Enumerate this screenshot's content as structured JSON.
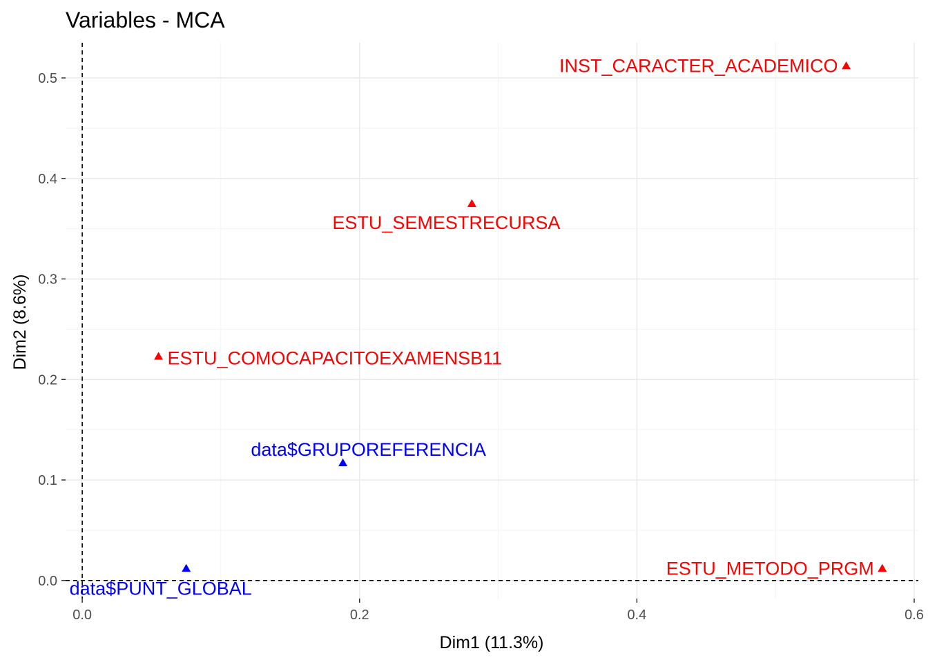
{
  "chart_data": {
    "type": "scatter",
    "title": "Variables - MCA",
    "xlabel": "Dim1 (11.3%)",
    "ylabel": "Dim2 (8.6%)",
    "xlim": [
      -0.012,
      0.603
    ],
    "ylim": [
      -0.018,
      0.535
    ],
    "x_ticks": [
      0.0,
      0.2,
      0.4,
      0.6
    ],
    "x_tick_labels": [
      "0.0",
      "0.2",
      "0.4",
      "0.6"
    ],
    "y_ticks": [
      0.0,
      0.1,
      0.2,
      0.3,
      0.4,
      0.5
    ],
    "y_tick_labels": [
      "0.0",
      "0.1",
      "0.2",
      "0.3",
      "0.4",
      "0.5"
    ],
    "grid": true,
    "reference_lines": {
      "x": 0,
      "y": 0,
      "style": "dashed"
    },
    "colors": {
      "active": "#ff0000",
      "supplementary": "#0000ff"
    },
    "points": [
      {
        "label": "INST_CARACTER_ACADEMICO",
        "x": 0.551,
        "y": 0.512,
        "group": "active",
        "label_pos": "left"
      },
      {
        "label": "ESTU_SEMESTRECURSA",
        "x": 0.281,
        "y": 0.375,
        "group": "active",
        "label_pos": "below"
      },
      {
        "label": "ESTU_COMOCAPACITOEXAMENSB11",
        "x": 0.055,
        "y": 0.223,
        "group": "active",
        "label_pos": "right"
      },
      {
        "label": "ESTU_METODO_PRGM",
        "x": 0.577,
        "y": 0.012,
        "group": "active",
        "label_pos": "left"
      },
      {
        "label": "data$GRUPOREFERENCIA",
        "x": 0.188,
        "y": 0.117,
        "group": "supplementary",
        "label_pos": "above"
      },
      {
        "label": "data$PUNT_GLOBAL",
        "x": 0.075,
        "y": 0.012,
        "group": "supplementary",
        "label_pos": "below"
      }
    ]
  }
}
